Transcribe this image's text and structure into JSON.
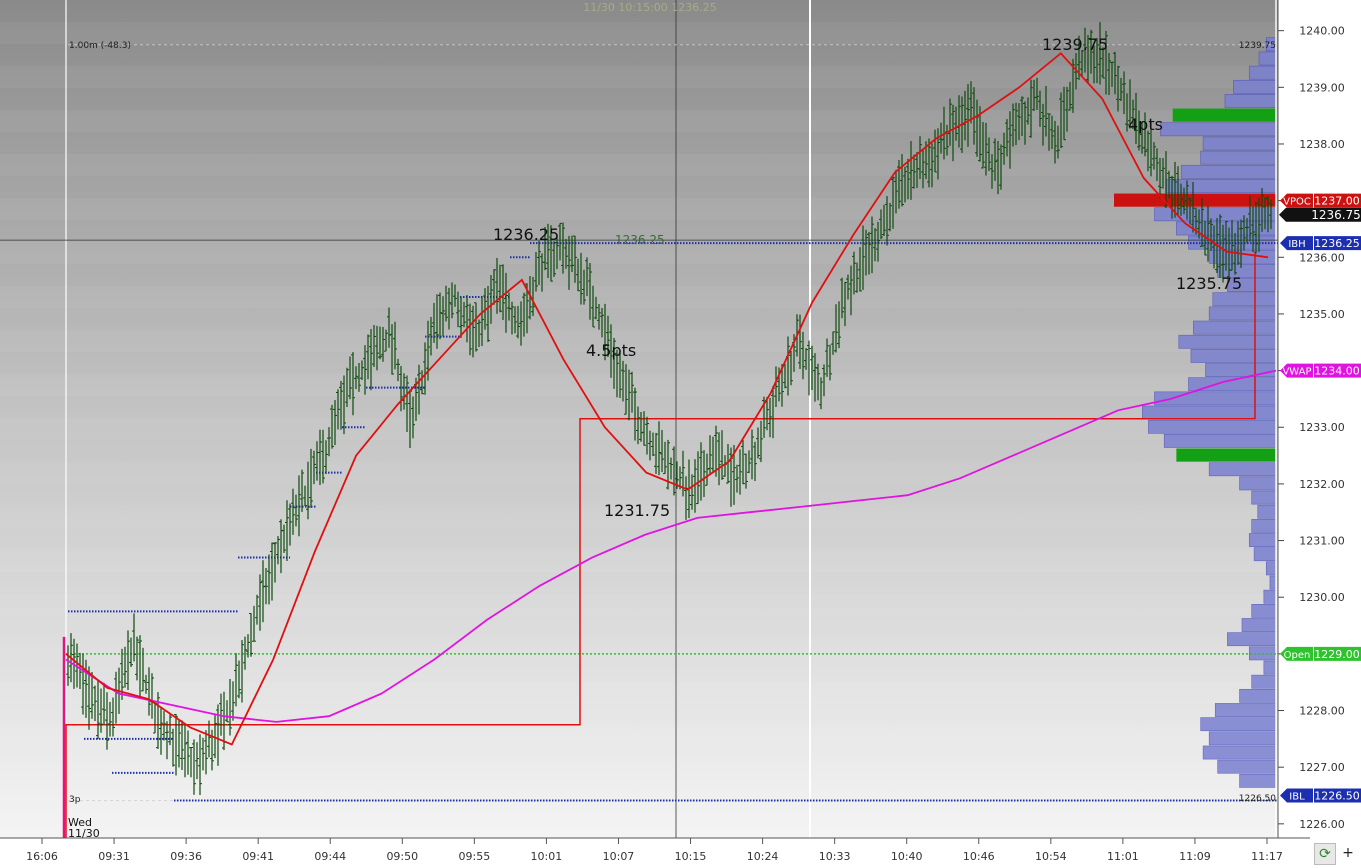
{
  "header": {
    "text": "11/30  10:15:00  1236.25"
  },
  "chart_data": {
    "type": "ohlc",
    "date_label": "Wed",
    "date_sub": "11/30",
    "x_tick_labels": [
      "16:06",
      "09:31",
      "09:36",
      "09:41",
      "09:44",
      "09:50",
      "09:55",
      "10:01",
      "10:07",
      "10:15",
      "10:24",
      "10:33",
      "10:40",
      "10:46",
      "10:54",
      "11:01",
      "11:09",
      "11:17"
    ],
    "ylim": [
      1225.75,
      1240.4
    ],
    "y_ticks": [
      1226.0,
      1227.0,
      1228.0,
      1229.0,
      1230.0,
      1231.0,
      1232.0,
      1233.0,
      1234.0,
      1235.0,
      1236.0,
      1237.0,
      1238.0,
      1239.0,
      1240.0
    ],
    "y_tick_labels": [
      "1226.00",
      "1227.00",
      "1228.00",
      "1229.00",
      "1230.00",
      "1231.00",
      "1232.00",
      "1233.00",
      "1234.00",
      "1235.00",
      "1236.00",
      "1237.00",
      "1238.00",
      "1239.00",
      "1240.00"
    ],
    "candle_path_y": [
      1229.0,
      1228.2,
      1227.8,
      1229.2,
      1228.0,
      1227.4,
      1227.0,
      1227.6,
      1228.6,
      1230.0,
      1231.0,
      1231.8,
      1232.6,
      1233.6,
      1234.2,
      1234.6,
      1233.0,
      1234.8,
      1235.3,
      1234.6,
      1235.5,
      1234.8,
      1235.9,
      1236.2,
      1235.6,
      1234.7,
      1233.6,
      1232.8,
      1232.3,
      1231.8,
      1232.6,
      1232.1,
      1232.6,
      1233.6,
      1234.5,
      1233.6,
      1235.2,
      1236.0,
      1236.6,
      1237.4,
      1237.7,
      1238.2,
      1238.6,
      1237.5,
      1238.2,
      1238.8,
      1238.1,
      1239.4,
      1239.6,
      1238.9,
      1238.2,
      1237.4,
      1236.9,
      1236.4,
      1236.0,
      1236.6,
      1236.8
    ],
    "vwap_line": {
      "name": "VWAP",
      "value": 1234.0,
      "y": [
        1228.9,
        1228.3,
        1228.1,
        1227.9,
        1227.8,
        1227.9,
        1228.3,
        1228.9,
        1229.6,
        1230.2,
        1230.7,
        1231.1,
        1231.4,
        1231.5,
        1231.6,
        1231.7,
        1231.8,
        1232.1,
        1232.5,
        1232.9,
        1233.3,
        1233.5,
        1233.8,
        1234.0
      ]
    },
    "moving_average": {
      "y": [
        1229.0,
        1228.4,
        1228.2,
        1227.7,
        1227.4,
        1228.9,
        1230.8,
        1232.5,
        1233.4,
        1234.2,
        1235.0,
        1235.6,
        1234.2,
        1233.0,
        1232.2,
        1231.9,
        1232.4,
        1233.6,
        1235.2,
        1236.4,
        1237.5,
        1238.1,
        1238.5,
        1239.0,
        1239.6,
        1238.8,
        1237.4,
        1236.6,
        1236.1,
        1236.0
      ]
    },
    "levels": [
      {
        "name": "IBH",
        "value": 1236.25,
        "label": "IBH",
        "price_label": "1236.25",
        "color": "#1b2fb0"
      },
      {
        "name": "IBL",
        "value": 1226.5,
        "label": "IBL",
        "price_label": "1226.50",
        "color": "#1b2fb0"
      },
      {
        "name": "Open",
        "value": 1229.0,
        "label": "Open",
        "price_label": "1229.00",
        "color": "#2ec22e"
      },
      {
        "name": "VPOC",
        "value": 1237.0,
        "label": "VPOC",
        "price_label": "1237.00",
        "color": "#cc1111"
      },
      {
        "name": "VWAP",
        "value": 1234.0,
        "label": "VWAP",
        "price_label": "1234.00",
        "color": "#e014e0"
      }
    ],
    "last_price": {
      "value": 1236.75,
      "label": "1236.75"
    },
    "annotations": [
      {
        "text": "1236.25",
        "value": 1236.25
      },
      {
        "text": "1231.75",
        "value": 1231.75
      },
      {
        "text": "1239.75",
        "value": 1239.75
      },
      {
        "text": "1235.75",
        "value": 1235.75
      },
      {
        "text": "4.5pts"
      },
      {
        "text": "4pts"
      }
    ],
    "small_labels": {
      "range": "1.00m (-48.3)",
      "high": "1239.75",
      "low": "1226.50",
      "three_p": "3p",
      "ibh_mid": "1236.25"
    },
    "volume_profile": [
      {
        "price": 1239.75,
        "vol": 0.08
      },
      {
        "price": 1239.5,
        "vol": 0.14
      },
      {
        "price": 1239.25,
        "vol": 0.22
      },
      {
        "price": 1239.0,
        "vol": 0.35
      },
      {
        "price": 1238.75,
        "vol": 0.42
      },
      {
        "price": 1238.5,
        "vol": 0.85,
        "hvn": true
      },
      {
        "price": 1238.25,
        "vol": 0.95
      },
      {
        "price": 1238.0,
        "vol": 0.6
      },
      {
        "price": 1237.75,
        "vol": 0.62
      },
      {
        "price": 1237.5,
        "vol": 0.78
      },
      {
        "price": 1237.25,
        "vol": 0.9
      },
      {
        "price": 1237.0,
        "vol": 1.2,
        "poc": true
      },
      {
        "price": 1236.75,
        "vol": 1.0
      },
      {
        "price": 1236.5,
        "vol": 0.82
      },
      {
        "price": 1236.25,
        "vol": 0.72
      },
      {
        "price": 1236.0,
        "vol": 0.55
      },
      {
        "price": 1235.75,
        "vol": 0.48
      },
      {
        "price": 1235.5,
        "vol": 0.4
      },
      {
        "price": 1235.25,
        "vol": 0.52
      },
      {
        "price": 1235.0,
        "vol": 0.55
      },
      {
        "price": 1234.75,
        "vol": 0.68
      },
      {
        "price": 1234.5,
        "vol": 0.8
      },
      {
        "price": 1234.25,
        "vol": 0.7
      },
      {
        "price": 1234.0,
        "vol": 0.58
      },
      {
        "price": 1233.75,
        "vol": 0.72
      },
      {
        "price": 1233.5,
        "vol": 1.0
      },
      {
        "price": 1233.25,
        "vol": 1.1
      },
      {
        "price": 1233.0,
        "vol": 1.05
      },
      {
        "price": 1232.75,
        "vol": 0.92
      },
      {
        "price": 1232.5,
        "vol": 0.82,
        "hvn": true
      },
      {
        "price": 1232.25,
        "vol": 0.55
      },
      {
        "price": 1232.0,
        "vol": 0.3
      },
      {
        "price": 1231.75,
        "vol": 0.2
      },
      {
        "price": 1231.5,
        "vol": 0.15
      },
      {
        "price": 1231.25,
        "vol": 0.2
      },
      {
        "price": 1231.0,
        "vol": 0.22
      },
      {
        "price": 1230.75,
        "vol": 0.18
      },
      {
        "price": 1230.5,
        "vol": 0.08
      },
      {
        "price": 1230.25,
        "vol": 0.05
      },
      {
        "price": 1230.0,
        "vol": 0.1
      },
      {
        "price": 1229.75,
        "vol": 0.2
      },
      {
        "price": 1229.5,
        "vol": 0.28
      },
      {
        "price": 1229.25,
        "vol": 0.4
      },
      {
        "price": 1229.0,
        "vol": 0.22
      },
      {
        "price": 1228.75,
        "vol": 0.1
      },
      {
        "price": 1228.5,
        "vol": 0.2
      },
      {
        "price": 1228.25,
        "vol": 0.3
      },
      {
        "price": 1228.0,
        "vol": 0.5
      },
      {
        "price": 1227.75,
        "vol": 0.62
      },
      {
        "price": 1227.5,
        "vol": 0.55
      },
      {
        "price": 1227.25,
        "vol": 0.6
      },
      {
        "price": 1227.0,
        "vol": 0.48
      },
      {
        "price": 1226.75,
        "vol": 0.3
      }
    ],
    "colors": {
      "candle": "#0e4a0e",
      "ma": "#e01010",
      "vwap": "#e014e0",
      "ib_dots": "#1b2fb0",
      "open": "#2ec22e",
      "profile": "#7a7fd0",
      "profile_edge": "#4a50b8",
      "hvn": "#14a014",
      "poc": "#cc1111",
      "range_line": "#e01010"
    },
    "grid": false
  },
  "toolbar": {
    "refresh_icon": "refresh-icon",
    "refresh_glyph": "⟳",
    "plus_label": "+"
  }
}
